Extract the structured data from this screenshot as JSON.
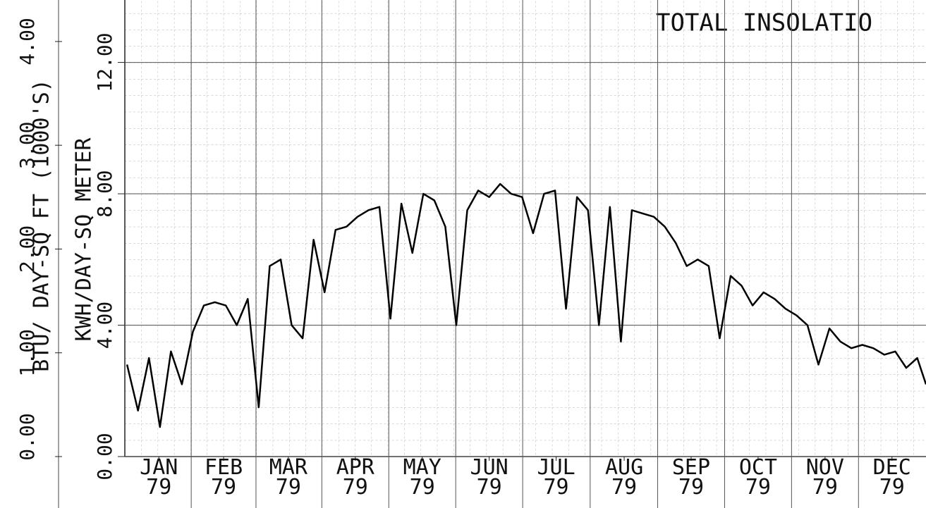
{
  "chart_data": {
    "type": "line",
    "title": "TOTAL INSOLATIO",
    "y_label": "KWH/DAY-SQ METER",
    "y2_label": "BTU/ DAY-SQ FT (1000'S)",
    "xlim": [
      0,
      365
    ],
    "xticks": [
      {
        "value": 15.5,
        "label": "JAN\n79"
      },
      {
        "value": 45,
        "label": "FEB\n79"
      },
      {
        "value": 74.5,
        "label": "MAR\n79"
      },
      {
        "value": 105,
        "label": "APR\n79"
      },
      {
        "value": 135.5,
        "label": "MAY\n79"
      },
      {
        "value": 166,
        "label": "JUN\n79"
      },
      {
        "value": 196.5,
        "label": "JUL\n79"
      },
      {
        "value": 227.5,
        "label": "AUG\n79"
      },
      {
        "value": 258,
        "label": "SEP\n79"
      },
      {
        "value": 288.5,
        "label": "OCT\n79"
      },
      {
        "value": 319,
        "label": "NOV\n79"
      },
      {
        "value": 349.5,
        "label": "DEC\n79"
      }
    ],
    "ylim": [
      0,
      13.9
    ],
    "yticks": [
      {
        "value": 0,
        "label": "0.00"
      },
      {
        "value": 4,
        "label": "4.00"
      },
      {
        "value": 8,
        "label": "8.00"
      },
      {
        "value": 12,
        "label": "12.00"
      }
    ],
    "y2lim": [
      0,
      4.4
    ],
    "y2ticks": [
      {
        "value": 0,
        "label": "0.00"
      },
      {
        "value": 1,
        "label": "1.00"
      },
      {
        "value": 2,
        "label": "2.00"
      },
      {
        "value": 3,
        "label": "3.00"
      },
      {
        "value": 4,
        "label": "4.00"
      }
    ],
    "grid": true,
    "color": "#000000",
    "x": [
      1,
      6,
      11,
      16,
      21,
      26,
      31,
      36,
      41,
      46,
      51,
      56,
      61,
      66,
      71,
      76,
      81,
      86,
      91,
      96,
      101,
      106,
      111,
      116,
      121,
      126,
      131,
      136,
      141,
      146,
      151,
      156,
      161,
      166,
      171,
      176,
      181,
      186,
      191,
      196,
      201,
      206,
      211,
      216,
      221,
      226,
      231,
      236,
      241,
      246,
      251,
      256,
      261,
      266,
      271,
      276,
      281,
      286,
      291,
      296,
      301,
      306,
      311,
      316,
      321,
      326,
      331,
      336,
      341,
      346,
      351,
      356,
      361,
      365
    ],
    "values": [
      2.8,
      1.4,
      3.0,
      0.9,
      3.2,
      2.2,
      3.8,
      4.6,
      4.7,
      4.6,
      4.0,
      4.8,
      1.5,
      5.8,
      6.0,
      4.0,
      3.6,
      6.6,
      5.0,
      6.9,
      7.0,
      7.3,
      7.5,
      7.6,
      4.2,
      7.7,
      6.2,
      8.0,
      7.8,
      7.0,
      4.0,
      7.5,
      8.1,
      7.9,
      8.3,
      8.0,
      7.9,
      6.8,
      8.0,
      8.1,
      4.5,
      7.9,
      7.5,
      4.0,
      7.6,
      3.5,
      7.5,
      7.4,
      7.3,
      7.0,
      6.5,
      5.8,
      6.0,
      5.8,
      3.6,
      5.5,
      5.2,
      4.6,
      5.0,
      4.8,
      4.5,
      4.3,
      4.0,
      2.8,
      3.9,
      3.5,
      3.3,
      3.4,
      3.3,
      3.1,
      3.2,
      2.7,
      3.0,
      2.2
    ]
  }
}
